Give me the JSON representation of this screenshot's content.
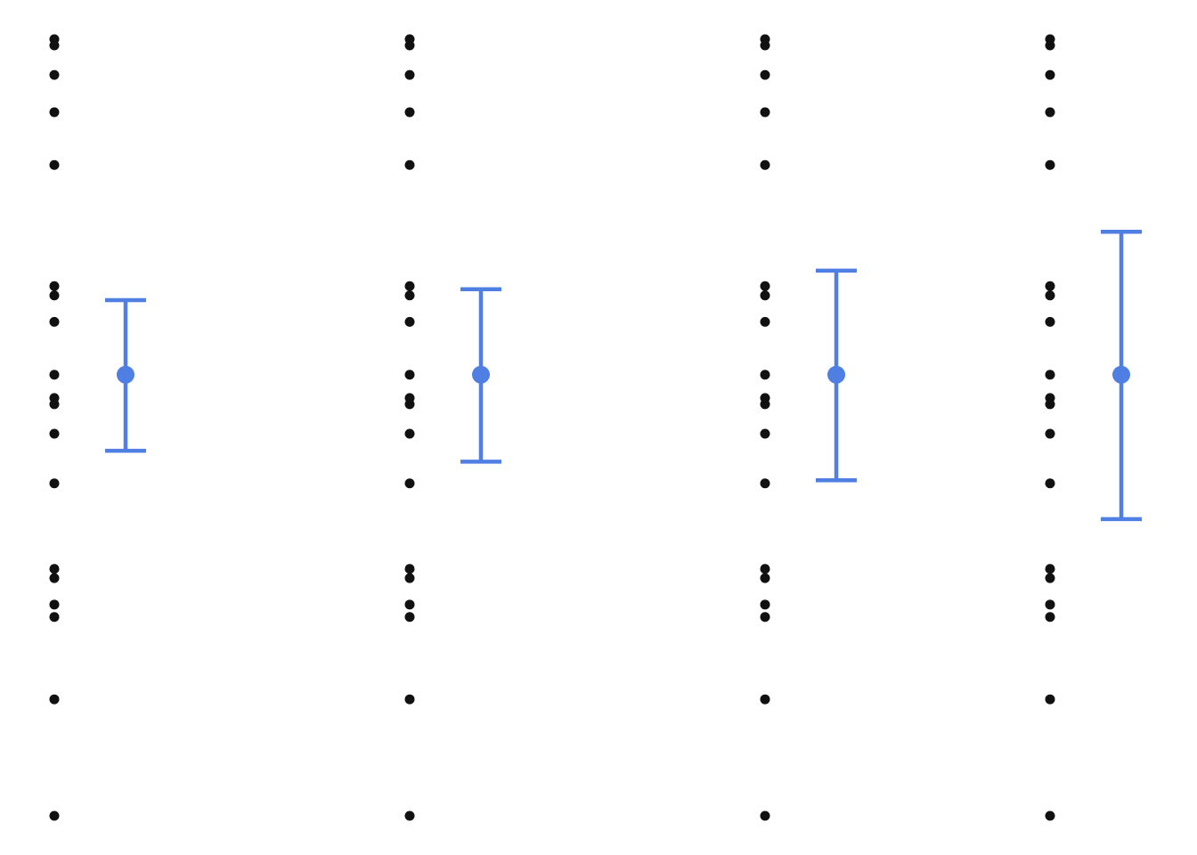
{
  "chart_data": {
    "type": "scatter",
    "title": "",
    "xlabel": "",
    "ylabel": "",
    "grid": false,
    "legend": "none",
    "colors": {
      "points": "#111111",
      "summary": "#4f7fe3"
    },
    "groups": [
      {
        "x": 1,
        "values": [
          100.0,
          99.6,
          97.7,
          95.3,
          91.9,
          84.1,
          83.5,
          81.8,
          78.4,
          76.9,
          76.5,
          74.6,
          71.4,
          65.9,
          65.3,
          63.6,
          62.8,
          57.5,
          50.0
        ],
        "mean": 78.4,
        "ci_lower": 73.5,
        "ci_upper": 83.2
      },
      {
        "x": 2,
        "values": [
          100.0,
          99.6,
          97.7,
          95.3,
          91.9,
          84.1,
          83.5,
          81.8,
          78.4,
          76.9,
          76.5,
          74.6,
          71.4,
          65.9,
          65.3,
          63.6,
          62.8,
          57.5,
          50.0
        ],
        "mean": 78.4,
        "ci_lower": 72.8,
        "ci_upper": 83.9
      },
      {
        "x": 3,
        "values": [
          100.0,
          99.6,
          97.7,
          95.3,
          91.9,
          84.1,
          83.5,
          81.8,
          78.4,
          76.9,
          76.5,
          74.6,
          71.4,
          65.9,
          65.3,
          63.6,
          62.8,
          57.5,
          50.0
        ],
        "mean": 78.4,
        "ci_lower": 71.6,
        "ci_upper": 85.1
      },
      {
        "x": 4,
        "values": [
          100.0,
          99.6,
          97.7,
          95.3,
          91.9,
          84.1,
          83.5,
          81.8,
          78.4,
          76.9,
          76.5,
          74.6,
          71.4,
          65.9,
          65.3,
          63.6,
          62.8,
          57.5,
          50.0
        ],
        "mean": 78.4,
        "ci_lower": 69.1,
        "ci_upper": 87.6
      }
    ]
  }
}
